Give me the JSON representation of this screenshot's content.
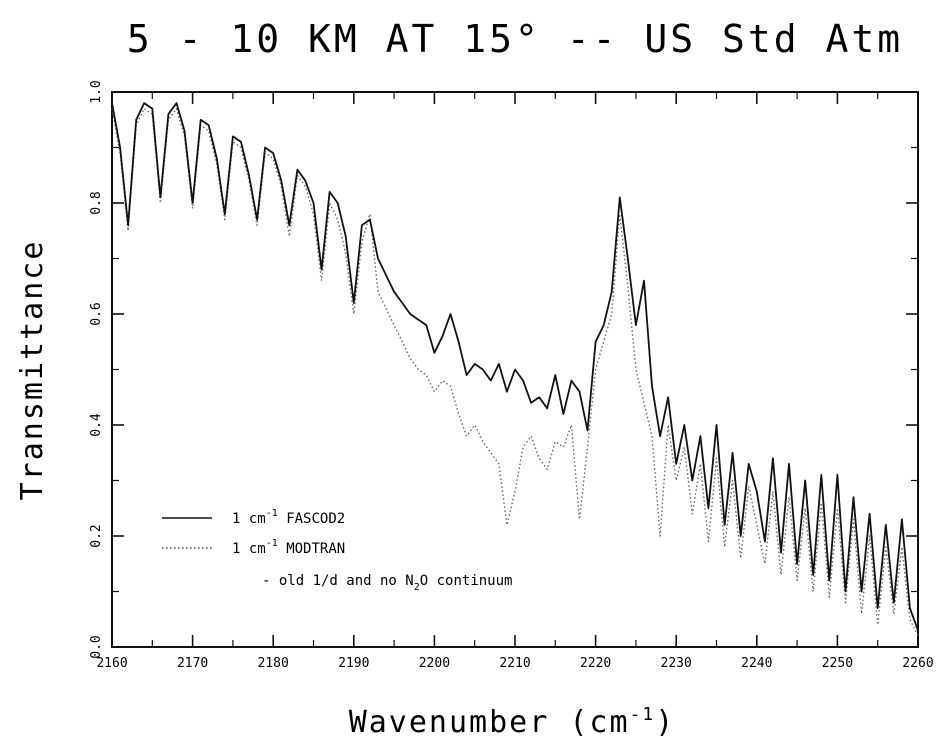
{
  "chart_data": {
    "type": "line",
    "title": "5 - 10 KM AT 15° -- US Std Atm",
    "xlabel": "Wavenumber (cm",
    "xlabel_sup": "-1",
    "xlabel_tail": ")",
    "ylabel": "Transmittance",
    "xlim": [
      2160,
      2260
    ],
    "ylim": [
      0.0,
      1.0
    ],
    "xticks": [
      2160,
      2170,
      2180,
      2190,
      2200,
      2210,
      2220,
      2230,
      2240,
      2250,
      2260
    ],
    "xtick_labels": [
      "2160",
      "2170",
      "2180",
      "2190",
      "2200",
      "2210",
      "2220",
      "2230",
      "2240",
      "2250",
      "2260"
    ],
    "yticks": [
      0.0,
      0.2,
      0.4,
      0.6,
      0.8,
      1.0
    ],
    "ytick_labels": [
      "0.0",
      "0.2",
      "0.4",
      "0.6",
      "0.8",
      "1.0"
    ],
    "legend": {
      "placement": "lower-left",
      "entries": [
        {
          "text": "1 cm",
          "sup": "-1",
          "tail": " FASCOD2",
          "style": "solid"
        },
        {
          "text": "1 cm",
          "sup": "-1",
          "tail": " MODTRAN",
          "style": "dotted"
        }
      ],
      "note": "- old 1/d and no N",
      "note_sub": "2",
      "note_tail": "O continuum"
    },
    "series": [
      {
        "name": "1 cm-1 FASCOD2",
        "style": "solid",
        "x": [
          2160,
          2161,
          2162,
          2163,
          2164,
          2165,
          2166,
          2167,
          2168,
          2169,
          2170,
          2171,
          2172,
          2173,
          2174,
          2175,
          2176,
          2177,
          2178,
          2179,
          2180,
          2181,
          2182,
          2183,
          2184,
          2185,
          2186,
          2187,
          2188,
          2189,
          2190,
          2191,
          2192,
          2193,
          2194,
          2195,
          2196,
          2197,
          2198,
          2199,
          2200,
          2201,
          2202,
          2203,
          2204,
          2205,
          2206,
          2207,
          2208,
          2209,
          2210,
          2211,
          2212,
          2213,
          2214,
          2215,
          2216,
          2217,
          2218,
          2219,
          2220,
          2221,
          2222,
          2223,
          2224,
          2225,
          2226,
          2227,
          2228,
          2229,
          2230,
          2231,
          2232,
          2233,
          2234,
          2235,
          2236,
          2237,
          2238,
          2239,
          2240,
          2241,
          2242,
          2243,
          2244,
          2245,
          2246,
          2247,
          2248,
          2249,
          2250,
          2251,
          2252,
          2253,
          2254,
          2255,
          2256,
          2257,
          2258,
          2259,
          2260
        ],
        "y": [
          0.98,
          0.9,
          0.76,
          0.95,
          0.98,
          0.97,
          0.81,
          0.96,
          0.98,
          0.93,
          0.8,
          0.95,
          0.94,
          0.88,
          0.78,
          0.92,
          0.91,
          0.85,
          0.77,
          0.9,
          0.89,
          0.84,
          0.76,
          0.86,
          0.84,
          0.8,
          0.68,
          0.82,
          0.8,
          0.74,
          0.62,
          0.76,
          0.77,
          0.7,
          0.67,
          0.64,
          0.62,
          0.6,
          0.59,
          0.58,
          0.53,
          0.56,
          0.6,
          0.55,
          0.49,
          0.51,
          0.5,
          0.48,
          0.51,
          0.46,
          0.5,
          0.48,
          0.44,
          0.45,
          0.43,
          0.49,
          0.42,
          0.48,
          0.46,
          0.39,
          0.55,
          0.58,
          0.64,
          0.81,
          0.7,
          0.58,
          0.66,
          0.47,
          0.38,
          0.45,
          0.33,
          0.4,
          0.3,
          0.38,
          0.25,
          0.4,
          0.22,
          0.35,
          0.2,
          0.33,
          0.28,
          0.19,
          0.34,
          0.17,
          0.33,
          0.15,
          0.3,
          0.13,
          0.31,
          0.12,
          0.31,
          0.1,
          0.27,
          0.1,
          0.24,
          0.07,
          0.22,
          0.08,
          0.23,
          0.07,
          0.03
        ]
      },
      {
        "name": "1 cm-1 MODTRAN",
        "style": "dotted",
        "x": [
          2160,
          2161,
          2162,
          2163,
          2164,
          2165,
          2166,
          2167,
          2168,
          2169,
          2170,
          2171,
          2172,
          2173,
          2174,
          2175,
          2176,
          2177,
          2178,
          2179,
          2180,
          2181,
          2182,
          2183,
          2184,
          2185,
          2186,
          2187,
          2188,
          2189,
          2190,
          2191,
          2192,
          2193,
          2194,
          2195,
          2196,
          2197,
          2198,
          2199,
          2200,
          2201,
          2202,
          2203,
          2204,
          2205,
          2206,
          2207,
          2208,
          2209,
          2210,
          2211,
          2212,
          2213,
          2214,
          2215,
          2216,
          2217,
          2218,
          2219,
          2220,
          2221,
          2222,
          2223,
          2224,
          2225,
          2226,
          2227,
          2228,
          2229,
          2230,
          2231,
          2232,
          2233,
          2234,
          2235,
          2236,
          2237,
          2238,
          2239,
          2240,
          2241,
          2242,
          2243,
          2244,
          2245,
          2246,
          2247,
          2248,
          2249,
          2250,
          2251,
          2252,
          2253,
          2254,
          2255,
          2256,
          2257,
          2258,
          2259,
          2260
        ],
        "y": [
          0.97,
          0.89,
          0.75,
          0.94,
          0.97,
          0.96,
          0.8,
          0.95,
          0.97,
          0.92,
          0.79,
          0.94,
          0.93,
          0.87,
          0.77,
          0.91,
          0.9,
          0.84,
          0.76,
          0.89,
          0.88,
          0.83,
          0.74,
          0.85,
          0.83,
          0.78,
          0.66,
          0.8,
          0.77,
          0.71,
          0.6,
          0.73,
          0.78,
          0.64,
          0.61,
          0.58,
          0.55,
          0.52,
          0.5,
          0.49,
          0.46,
          0.48,
          0.47,
          0.42,
          0.38,
          0.4,
          0.37,
          0.35,
          0.33,
          0.22,
          0.28,
          0.36,
          0.38,
          0.34,
          0.32,
          0.37,
          0.36,
          0.4,
          0.23,
          0.36,
          0.5,
          0.55,
          0.6,
          0.78,
          0.65,
          0.5,
          0.44,
          0.38,
          0.2,
          0.4,
          0.3,
          0.36,
          0.24,
          0.33,
          0.19,
          0.34,
          0.18,
          0.3,
          0.16,
          0.29,
          0.22,
          0.15,
          0.28,
          0.13,
          0.27,
          0.12,
          0.25,
          0.1,
          0.26,
          0.09,
          0.25,
          0.08,
          0.23,
          0.06,
          0.2,
          0.04,
          0.18,
          0.06,
          0.18,
          0.05,
          0.02
        ]
      }
    ],
    "grid": false
  }
}
